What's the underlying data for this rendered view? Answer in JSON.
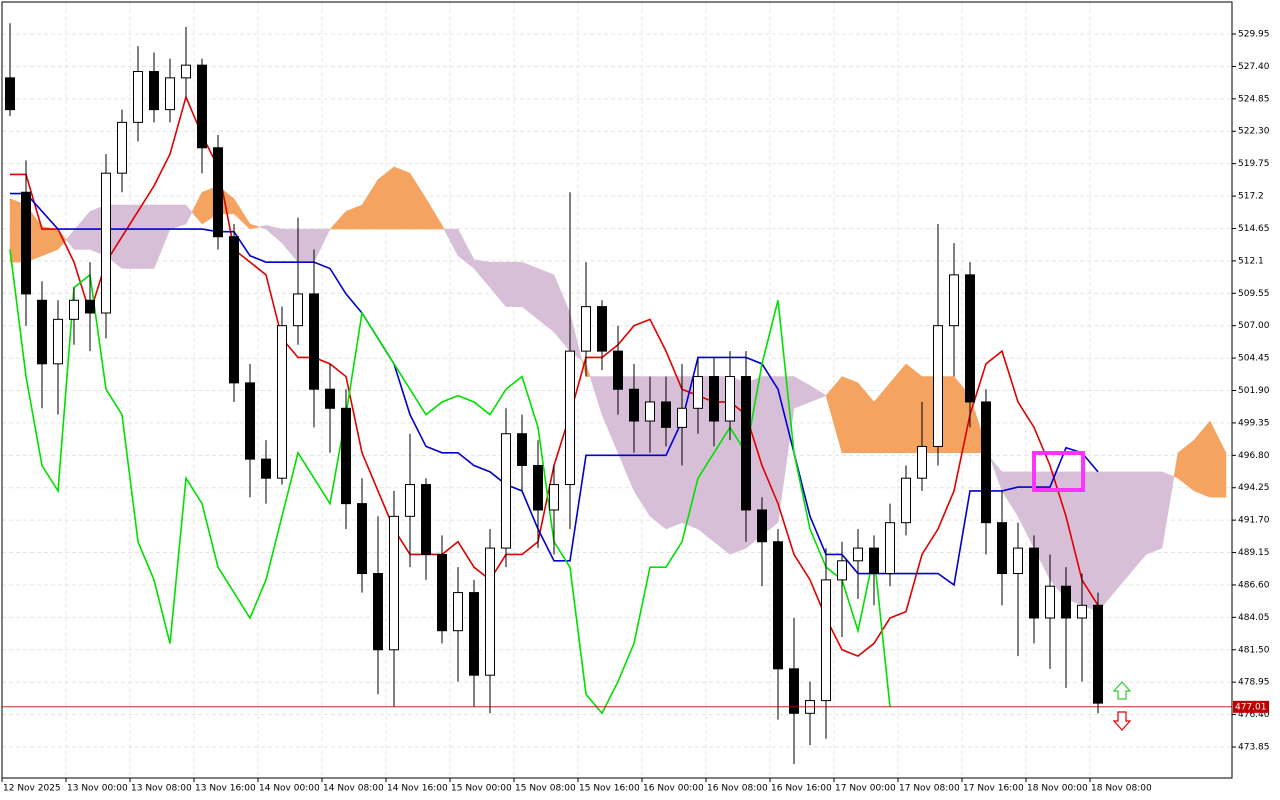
{
  "chart_data": {
    "type": "candlestick",
    "bull_color": "#ffffff",
    "bear_color": "#000000",
    "grid": true,
    "xlim": [
      0,
      153.75
    ],
    "ylim": [
      471.41,
      532.47
    ],
    "xticks": [
      {
        "value": 0,
        "label": "12 Nov 2025"
      },
      {
        "value": 8,
        "label": "13 Nov 00:00"
      },
      {
        "value": 16,
        "label": "13 Nov 08:00"
      },
      {
        "value": 24,
        "label": "13 Nov 16:00"
      },
      {
        "value": 32,
        "label": "14 Nov 00:00"
      },
      {
        "value": 40,
        "label": "14 Nov 08:00"
      },
      {
        "value": 48,
        "label": "14 Nov 16:00"
      },
      {
        "value": 56,
        "label": "15 Nov 00:00"
      },
      {
        "value": 64,
        "label": "15 Nov 08:00"
      },
      {
        "value": 72,
        "label": "15 Nov 16:00"
      },
      {
        "value": 80,
        "label": "16 Nov 00:00"
      },
      {
        "value": 88,
        "label": "16 Nov 08:00"
      },
      {
        "value": 96,
        "label": "16 Nov 16:00"
      },
      {
        "value": 104,
        "label": "17 Nov 00:00"
      },
      {
        "value": 112,
        "label": "17 Nov 08:00"
      },
      {
        "value": 120,
        "label": "17 Nov 16:00"
      },
      {
        "value": 128,
        "label": "18 Nov 00:00"
      },
      {
        "value": 136,
        "label": "18 Nov 08:00"
      }
    ],
    "yticks": [
      529.95,
      {
        "value": 527.4,
        "label": "527.40"
      },
      524.85,
      {
        "value": 522.3,
        "label": "522.30"
      },
      519.75,
      517.2,
      514.65,
      512.1,
      509.55,
      {
        "value": 507,
        "label": "507.00"
      },
      504.45,
      {
        "value": 501.9,
        "label": "501.90"
      },
      499.35,
      {
        "value": 496.8,
        "label": "496.80"
      },
      494.25,
      {
        "value": 491.7,
        "label": "491.70"
      },
      489.15,
      {
        "value": 486.6,
        "label": "486.60"
      },
      484.05,
      {
        "value": 481.5,
        "label": "481.50"
      },
      478.95,
      {
        "value": 476.4,
        "label": "476.40"
      },
      473.85
    ],
    "current_price": 477.01,
    "current_price_color": "#c00000",
    "x": [
      1,
      3,
      5,
      7,
      9,
      11,
      13,
      15,
      17,
      19,
      21,
      23,
      25,
      27,
      29,
      31,
      33,
      35,
      37,
      39,
      41,
      43,
      45,
      47,
      49,
      51,
      53,
      55,
      57,
      59,
      61,
      63,
      65,
      67,
      69,
      71,
      73,
      75,
      77,
      79,
      81,
      83,
      85,
      87,
      89,
      91,
      93,
      95,
      97,
      99,
      101,
      103,
      105,
      107,
      109,
      111,
      113,
      115,
      117,
      119,
      121,
      123,
      125,
      127,
      129,
      131,
      133,
      135,
      137,
      139,
      141,
      143,
      145,
      147,
      149,
      151,
      153
    ],
    "open": [
      526.5,
      517.5,
      509,
      504,
      507.5,
      509,
      508,
      519,
      523,
      527,
      524,
      526.5,
      527.5,
      521,
      514,
      502.5,
      496.5,
      495,
      507,
      509.5,
      502,
      500.5,
      493,
      487.5,
      481.5,
      492,
      494.5,
      489,
      483,
      486,
      479.5,
      489.5,
      498.5,
      496,
      492.5,
      494.5,
      505,
      508.5,
      505,
      502,
      499.5,
      501,
      499,
      500.5,
      503,
      499.5,
      503,
      492.5,
      490,
      480,
      476.5,
      477.5,
      487,
      488.5,
      489.5,
      487.5,
      491.5,
      495,
      497.5,
      507,
      511,
      501,
      491.5,
      487.5,
      489.5,
      484,
      486.5,
      484,
      485,
      null,
      null,
      null,
      null,
      null,
      null,
      null,
      null
    ],
    "high": [
      530.8,
      520,
      510.5,
      509,
      510,
      512,
      520.5,
      524,
      529,
      528.5,
      528,
      530.5,
      528,
      522,
      515,
      504,
      498,
      508.5,
      515.5,
      513,
      504,
      502,
      495,
      492,
      494,
      498.5,
      495,
      490.5,
      488,
      487,
      491,
      500.5,
      500,
      498,
      496,
      517.5,
      512,
      509,
      507,
      504,
      503,
      503,
      504,
      504.5,
      504.5,
      505,
      505,
      493.5,
      491,
      484,
      479,
      489.5,
      490,
      491,
      490.5,
      493,
      496,
      501,
      515,
      513.5,
      512,
      502,
      494,
      491.5,
      490.5,
      489,
      488,
      487.5,
      486,
      null,
      null,
      null,
      null,
      null,
      null,
      null,
      null
    ],
    "low": [
      523.5,
      507,
      500.5,
      500,
      505.5,
      505,
      506,
      517.5,
      521.5,
      523,
      523,
      525,
      519,
      513,
      501,
      493.5,
      493,
      494.5,
      505.5,
      499,
      497,
      491,
      486,
      478,
      477,
      488,
      487,
      482,
      479,
      477,
      476.5,
      488,
      494,
      489.5,
      489,
      491,
      503,
      503.5,
      500,
      497,
      497,
      497.5,
      496,
      498.5,
      497.5,
      498,
      490,
      486.5,
      476,
      472.5,
      474,
      474.5,
      482.5,
      485.5,
      485,
      486.5,
      490.5,
      494,
      496,
      503,
      499,
      489,
      485,
      481,
      482,
      480,
      478.5,
      479,
      476.5,
      null,
      null,
      null,
      null,
      null,
      null,
      null,
      null
    ],
    "close": [
      524,
      509.5,
      504,
      507.5,
      509,
      508,
      519,
      523,
      527,
      524,
      526.5,
      527.5,
      521,
      514,
      502.5,
      496.5,
      495,
      507,
      509.5,
      502,
      500.5,
      493,
      487.5,
      481.5,
      492,
      494.5,
      489,
      483,
      486,
      479.5,
      489.5,
      498.5,
      496,
      492.5,
      494.5,
      505,
      508.5,
      505,
      502,
      499.5,
      501,
      499,
      500.5,
      503,
      499.5,
      503,
      492.5,
      490,
      480,
      476.5,
      477.5,
      487,
      488.5,
      489.5,
      487.5,
      491.5,
      495,
      497.5,
      507,
      511,
      501,
      491.5,
      487.5,
      489.5,
      484,
      486.5,
      484,
      485,
      477.3,
      null,
      null,
      null,
      null,
      null,
      null,
      null,
      null
    ],
    "lines": [
      {
        "color": "#e00000",
        "values": [
          518.9,
          518.9,
          514.6,
          514.6,
          512,
          508,
          512,
          514,
          516,
          518,
          520.5,
          525,
          522,
          519.5,
          513,
          512,
          511,
          506,
          504.5,
          504.5,
          504,
          503,
          497,
          494,
          491,
          489,
          489,
          489,
          490,
          488,
          487,
          489,
          489,
          490,
          496,
          500,
          504.5,
          504.5,
          505.5,
          507,
          507.5,
          505,
          502,
          501.5,
          501,
          501,
          500,
          496,
          493,
          489,
          487,
          484,
          481.5,
          481,
          482,
          484,
          484.5,
          489,
          491,
          494,
          500,
          504,
          505,
          501,
          499,
          496,
          492,
          487,
          485,
          null,
          null,
          null,
          null,
          null,
          null,
          null,
          null
        ]
      },
      {
        "color": "#0000d0",
        "values": [
          517.4,
          517.4,
          516,
          514.6,
          514.6,
          514.6,
          514.6,
          514.6,
          514.6,
          514.6,
          514.6,
          514.6,
          514.6,
          514.4,
          514.4,
          512.5,
          512,
          512,
          512,
          512,
          511.5,
          509.5,
          508,
          506,
          504,
          500,
          497.5,
          497,
          497,
          496,
          495.5,
          494.5,
          494,
          491,
          488.5,
          488.5,
          496.8,
          496.8,
          496.8,
          496.8,
          496.8,
          496.8,
          499.5,
          504.5,
          504.5,
          504.5,
          504.5,
          504,
          502,
          497,
          492,
          489,
          489,
          487.5,
          487.5,
          487.5,
          487.5,
          487.5,
          487.5,
          486.6,
          494,
          494,
          494,
          494.3,
          494.3,
          494.3,
          497.4,
          497,
          495.5,
          null,
          null,
          null,
          null,
          null,
          null,
          null,
          null
        ]
      },
      {
        "color": "#00e000",
        "values": [
          513,
          503,
          496,
          494,
          510,
          511,
          502,
          500,
          490,
          487,
          482,
          495,
          493,
          488,
          486,
          484,
          487,
          492,
          497,
          495,
          493,
          500,
          508,
          506,
          504,
          502,
          500,
          501,
          501.5,
          501,
          500,
          502,
          503,
          499,
          490,
          488,
          478,
          476.5,
          479,
          482,
          488,
          488,
          490,
          495,
          497,
          499,
          497,
          504,
          509,
          497,
          491,
          488,
          487,
          483,
          489,
          477,
          null,
          null,
          null,
          null,
          null,
          null,
          null,
          null,
          null,
          null,
          null,
          null,
          null,
          null,
          null,
          null,
          null,
          null,
          null,
          null,
          null
        ]
      }
    ],
    "cloud": {
      "up_color": "#f4a460",
      "down_color": "#d8bfd8",
      "span_a": [
        517,
        516.5,
        514.8,
        514.6,
        513,
        513,
        512.5,
        511.5,
        511.5,
        511.5,
        514.6,
        515,
        517.5,
        518,
        517,
        515,
        514.6,
        513.5,
        512,
        512,
        514.6,
        516,
        516.5,
        518.5,
        519.5,
        519,
        517,
        514.9,
        512.5,
        511.5,
        510,
        508.5,
        508.5,
        507.5,
        506.5,
        505,
        504,
        500,
        497,
        494,
        492,
        491,
        491.5,
        491,
        490,
        489,
        489.5,
        490.5,
        491.5,
        500.5,
        501,
        501.5,
        503,
        502.5,
        501,
        502.5,
        504,
        503,
        503,
        503,
        501.5,
        497.5,
        494,
        492,
        489.5,
        487,
        485.5,
        485,
        484.5,
        486,
        487.5,
        489,
        489.5,
        497,
        498,
        499.5,
        497
      ],
      "span_b": [
        512,
        512,
        512.5,
        513,
        514.5,
        516,
        516.5,
        516.5,
        516.5,
        516.5,
        516.5,
        516.5,
        515,
        515.8,
        515.8,
        514.6,
        514.9,
        514.6,
        514.6,
        514.6,
        514.6,
        514.6,
        514.6,
        514.6,
        514.6,
        514.6,
        514.6,
        514.6,
        514.6,
        512.2,
        512,
        512,
        512,
        511.5,
        511,
        508,
        503,
        503,
        503,
        503,
        503,
        503,
        503,
        503,
        503,
        503,
        502.5,
        503,
        503,
        503,
        502.3,
        501.5,
        497,
        497,
        497,
        497,
        497,
        497,
        497,
        497,
        497,
        497,
        495.5,
        495.5,
        495.5,
        495.5,
        495.5,
        495.5,
        495.5,
        495.5,
        495.5,
        495.5,
        495.5,
        495,
        494,
        493.5,
        493.5
      ]
    }
  }
}
